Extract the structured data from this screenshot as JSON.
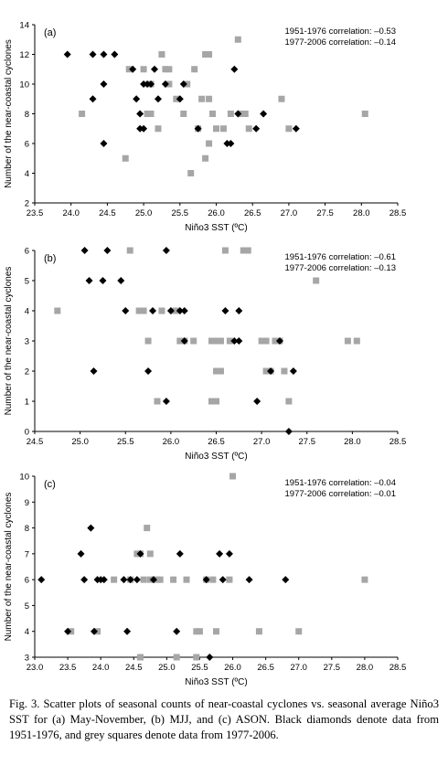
{
  "chart_data": [
    {
      "type": "scatter",
      "panel_label": "(a)",
      "xlabel": "Niño3 SST (ºC)",
      "ylabel": "Number of the near-coastal cyclones",
      "xlim": [
        23.5,
        28.5
      ],
      "ylim": [
        2,
        14
      ],
      "xticks": [
        "23.5",
        "24.0",
        "24.5",
        "25.0",
        "25.5",
        "26.0",
        "26.5",
        "27.0",
        "27.5",
        "28.0",
        "28.5"
      ],
      "yticks": [
        "2",
        "4",
        "6",
        "8",
        "10",
        "12",
        "14"
      ],
      "annotations": [
        "1951-1976 correlation: –0.53",
        "1977-2006 correlation: –0.14"
      ],
      "series": [
        {
          "marker": "diamond",
          "color": "#000000",
          "x": [
            23.95,
            24.3,
            24.45,
            24.6,
            24.3,
            24.45,
            24.45,
            24.85,
            24.9,
            24.95,
            24.95,
            25.0,
            25.0,
            25.05,
            25.1,
            25.15,
            25.2,
            25.3,
            25.5,
            25.55,
            25.75,
            26.15,
            26.2,
            26.25,
            26.3,
            26.55,
            26.65,
            27.1
          ],
          "y": [
            12,
            12,
            12,
            12,
            9,
            10,
            6,
            11,
            9,
            8,
            7,
            10,
            7,
            10,
            10,
            11,
            9,
            10,
            9,
            10,
            7,
            6,
            6,
            11,
            8,
            7,
            8,
            7
          ]
        },
        {
          "marker": "square",
          "color": "#a6a6a6",
          "x": [
            24.15,
            24.75,
            24.8,
            25.0,
            25.05,
            25.1,
            25.2,
            25.25,
            25.3,
            25.35,
            25.45,
            25.55,
            25.6,
            25.65,
            25.7,
            25.75,
            25.8,
            25.85,
            25.85,
            25.9,
            25.9,
            25.95,
            26.0,
            26.1,
            26.2,
            26.3,
            26.4,
            26.45,
            26.9,
            27.0,
            28.05,
            25.9,
            25.35,
            26.35,
            25.1
          ]
        },
        {
          "marker": "square",
          "color": "#a6a6a6",
          "note_free": true
        }
      ]
    },
    {
      "type": "scatter",
      "panel_label": "(b)",
      "xlabel": "Niño3 SST (ºC)",
      "ylabel": "Number of the near-coastal cyclones",
      "xlim": [
        24.5,
        28.5
      ],
      "ylim": [
        0,
        6
      ],
      "xticks": [
        "24.5",
        "25.0",
        "25.5",
        "26.0",
        "26.5",
        "27.0",
        "27.5",
        "28.0",
        "28.5"
      ],
      "yticks": [
        "0",
        "1",
        "2",
        "3",
        "4",
        "5",
        "6"
      ],
      "annotations": [
        "1951-1976 correlation: –0.61",
        "1977-2006 correlation: –0.13"
      ],
      "series": [
        {
          "marker": "diamond",
          "color": "#000000",
          "x": [
            25.05,
            25.3,
            25.1,
            25.25,
            25.45,
            25.5,
            25.8,
            25.95,
            26.0,
            26.1,
            26.15,
            26.15,
            26.6,
            26.7,
            26.75,
            26.75,
            27.2,
            27.1,
            25.15,
            25.75,
            25.95,
            26.95,
            27.35,
            27.3
          ],
          "y": [
            6,
            6,
            5,
            5,
            5,
            4,
            4,
            6,
            4,
            4,
            4,
            3,
            4,
            3,
            4,
            3,
            3,
            2,
            2,
            2,
            1,
            1,
            2,
            0
          ]
        },
        {
          "marker": "square",
          "color": "#a6a6a6",
          "x": [
            24.75,
            25.55,
            25.65,
            25.7,
            25.75,
            25.9,
            26.05,
            26.15,
            26.25,
            26.45,
            26.5,
            26.5,
            26.55,
            26.45,
            26.5,
            26.65,
            26.85,
            27.0,
            27.05,
            27.05,
            27.1,
            27.15,
            27.25,
            27.3,
            27.6,
            27.95,
            28.05,
            26.6,
            26.8,
            25.85,
            26.1,
            26.45,
            26.55,
            27.2
          ]
        },
        {
          "marker": "square",
          "color": "#a6a6a6",
          "note_free": true
        }
      ]
    },
    {
      "type": "scatter",
      "panel_label": "(c)",
      "xlabel": "Niño3 SST (ºC)",
      "ylabel": "Number of the near-coastal cyclones",
      "xlim": [
        23.0,
        28.5
      ],
      "ylim": [
        3,
        10
      ],
      "xticks": [
        "23.0",
        "23.5",
        "24.0",
        "24.5",
        "25.0",
        "25.5",
        "26.0",
        "26.5",
        "27.0",
        "27.5",
        "28.0",
        "28.5"
      ],
      "yticks": [
        "3",
        "4",
        "5",
        "6",
        "7",
        "8",
        "9",
        "10"
      ],
      "annotations": [
        "1951-1976 correlation: –0.04",
        "1977-2006 correlation: –0.01"
      ],
      "series": [
        {
          "marker": "diamond",
          "color": "#000000",
          "x": [
            23.1,
            23.5,
            23.7,
            23.75,
            23.85,
            23.9,
            23.95,
            24.0,
            24.05,
            24.35,
            24.4,
            24.45,
            24.55,
            24.6,
            24.8,
            25.15,
            25.2,
            25.6,
            25.65,
            25.8,
            25.85,
            25.95,
            26.25,
            26.8
          ],
          "y": [
            6,
            4,
            7,
            6,
            8,
            4,
            6,
            6,
            6,
            6,
            4,
            6,
            6,
            7,
            6,
            4,
            7,
            6,
            3,
            7,
            6,
            7,
            6,
            6
          ]
        },
        {
          "marker": "square",
          "color": "#a6a6a6",
          "x": [
            23.55,
            23.95,
            24.2,
            24.45,
            24.55,
            24.6,
            24.65,
            24.7,
            24.75,
            24.85,
            24.9,
            25.1,
            25.15,
            25.3,
            25.45,
            25.5,
            25.6,
            25.7,
            25.75,
            25.95,
            26.0,
            26.4,
            27.0,
            28.0,
            24.6,
            24.75,
            25.45
          ]
        },
        {
          "marker": "square",
          "color": "#a6a6a6",
          "note_free": true
        }
      ]
    }
  ],
  "caption": "Fig. 3. Scatter plots of seasonal counts of near-coastal cyclones vs. seasonal average Niño3 SST for (a) May-November, (b) MJJ, and (c) ASON. Black diamonds denote data from 1951-1976, and grey squares denote data from 1977-2006."
}
